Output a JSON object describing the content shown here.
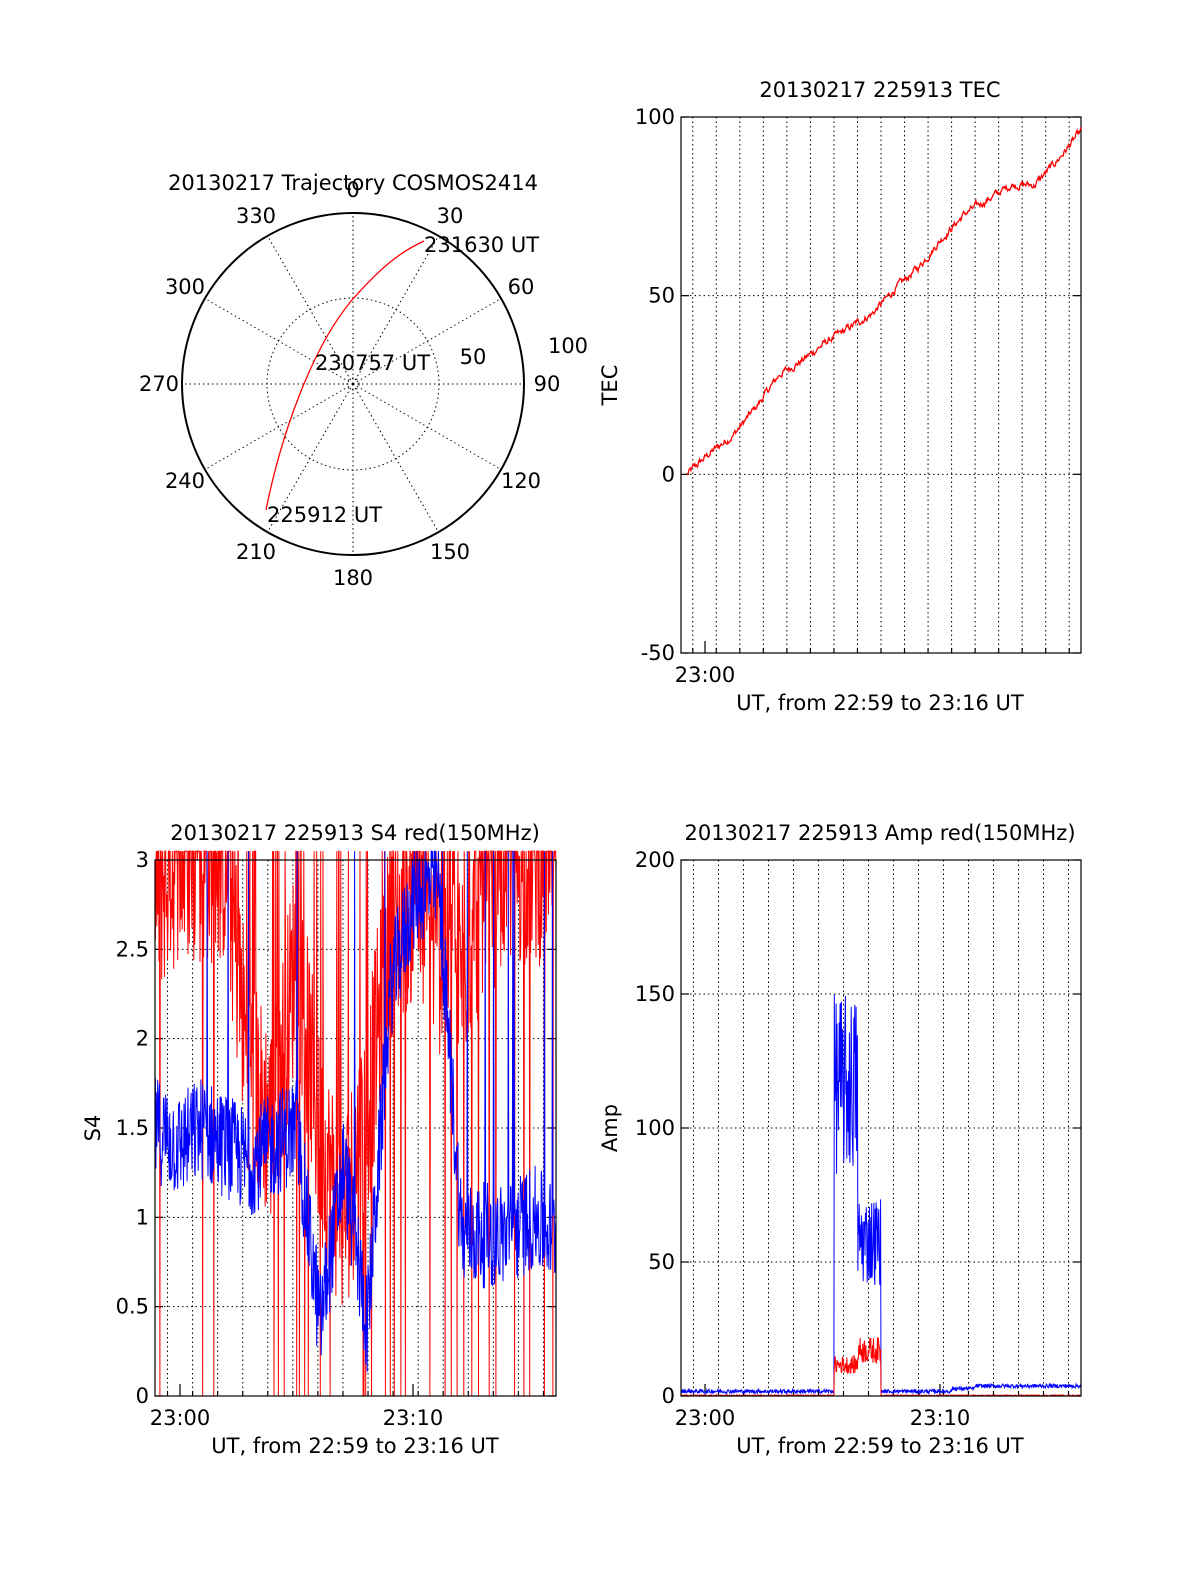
{
  "polar": {
    "title": "20130217 Trajectory COSMOS2414",
    "azimuth_labels": [
      "0",
      "30",
      "60",
      "90",
      "120",
      "150",
      "180",
      "210",
      "240",
      "270",
      "300",
      "330"
    ],
    "radial_labels": [
      "50",
      "100"
    ],
    "points": [
      {
        "label": "231630 UT",
        "az": 30,
        "el": 20
      },
      {
        "label": "230757 UT",
        "az": 100,
        "el": 83
      },
      {
        "label": "225912 UT",
        "az": 210,
        "el": 8
      }
    ]
  },
  "tec": {
    "title": "20130217 225913 TEC",
    "ylabel": "TEC",
    "xlabel": "UT, from 22:59 to 23:16 UT",
    "yticks": [
      "100",
      "50",
      "0",
      "-50"
    ],
    "xticks": [
      "23:00"
    ],
    "series_color": "#ff0000"
  },
  "s4": {
    "title": "20130217 225913 S4 red(150MHz)",
    "ylabel": "S4",
    "xlabel": "UT, from 22:59 to 23:16 UT",
    "yticks": [
      "3",
      "2.5",
      "2",
      "1.5",
      "1",
      "0.5",
      "0"
    ],
    "xticks": [
      "23:00",
      "23:10"
    ]
  },
  "amp": {
    "title": "20130217 225913 Amp red(150MHz)",
    "ylabel": "Amp",
    "xlabel": "UT, from 22:59 to 23:16 UT",
    "yticks": [
      "200",
      "150",
      "100",
      "50",
      "0"
    ],
    "xticks": [
      "23:00",
      "23:10"
    ]
  },
  "colors": {
    "red": "#ff0000",
    "blue": "#0000ff"
  },
  "chart_data": [
    {
      "type": "scatter",
      "title": "20130217 Trajectory COSMOS2414",
      "polar": true,
      "series": [
        {
          "x_az_deg": [
            210,
            213,
            220,
            235,
            270,
            320,
            360,
            20,
            30
          ],
          "y_el_deg": [
            8,
            15,
            28,
            50,
            75,
            80,
            55,
            30,
            20
          ]
        }
      ]
    },
    {
      "type": "line",
      "title": "20130217 225913 TEC",
      "ylabel": "TEC",
      "xlabel": "UT, from 22:59 to 23:16 UT",
      "xlim": [
        "22:59",
        "23:16"
      ],
      "ylim": [
        -50,
        100
      ],
      "grid": true,
      "x": [
        "22:59",
        "23:00",
        "23:01",
        "23:02",
        "23:03",
        "23:04",
        "23:05",
        "23:06",
        "23:07",
        "23:08",
        "23:09",
        "23:10",
        "23:11",
        "23:12",
        "23:13",
        "23:14",
        "23:15",
        "23:16"
      ],
      "values": [
        0,
        6,
        11,
        19,
        28,
        32,
        37,
        41,
        45,
        52,
        58,
        66,
        73,
        77,
        81,
        81,
        88,
        96
      ]
    },
    {
      "type": "line",
      "title": "20130217 225913 S4 red(150MHz)",
      "ylabel": "S4",
      "xlabel": "UT, from 22:59 to 23:16 UT",
      "xlim": [
        "22:59",
        "23:16"
      ],
      "ylim": [
        0,
        3
      ],
      "grid": true,
      "x": [
        "22:59",
        "23:00",
        "23:01",
        "23:02",
        "23:03",
        "23:04",
        "23:05",
        "23:06",
        "23:07",
        "23:08",
        "23:09",
        "23:10",
        "23:11",
        "23:12",
        "23:13",
        "23:14",
        "23:15",
        "23:16"
      ],
      "series": [
        {
          "color": "red",
          "values": [
            2.8,
            3.0,
            3.0,
            3.0,
            1.8,
            1.5,
            2.5,
            1.4,
            1.0,
            1.6,
            2.6,
            2.8,
            2.5,
            2.4,
            2.8,
            3.0,
            3.0,
            3.0
          ]
        },
        {
          "color": "blue",
          "values": [
            1.5,
            1.4,
            1.5,
            1.4,
            1.3,
            1.4,
            1.5,
            0.4,
            1.3,
            0.4,
            2.3,
            2.8,
            2.9,
            0.9,
            0.9,
            0.9,
            1.0,
            0.9
          ]
        }
      ]
    },
    {
      "type": "line",
      "title": "20130217 225913 Amp red(150MHz)",
      "ylabel": "Amp",
      "xlabel": "UT, from 22:59 to 23:16 UT",
      "xlim": [
        "22:59",
        "23:16"
      ],
      "ylim": [
        0,
        200
      ],
      "grid": true,
      "x": [
        "22:59",
        "23:00",
        "23:01",
        "23:02",
        "23:03",
        "23:04",
        "23:05",
        "23:06",
        "23:07",
        "23:08",
        "23:09",
        "23:10",
        "23:11",
        "23:12",
        "23:13",
        "23:14",
        "23:15",
        "23:16"
      ],
      "series": [
        {
          "color": "red",
          "values": [
            0,
            0,
            0,
            0,
            0,
            0,
            0,
            15,
            22,
            0,
            0,
            0,
            0,
            0,
            0,
            0,
            0,
            0
          ]
        },
        {
          "color": "blue",
          "values": [
            1,
            1,
            1,
            1,
            1,
            1,
            1,
            150,
            75,
            1,
            1,
            1,
            2,
            3,
            3,
            3,
            3,
            3
          ]
        }
      ]
    }
  ]
}
